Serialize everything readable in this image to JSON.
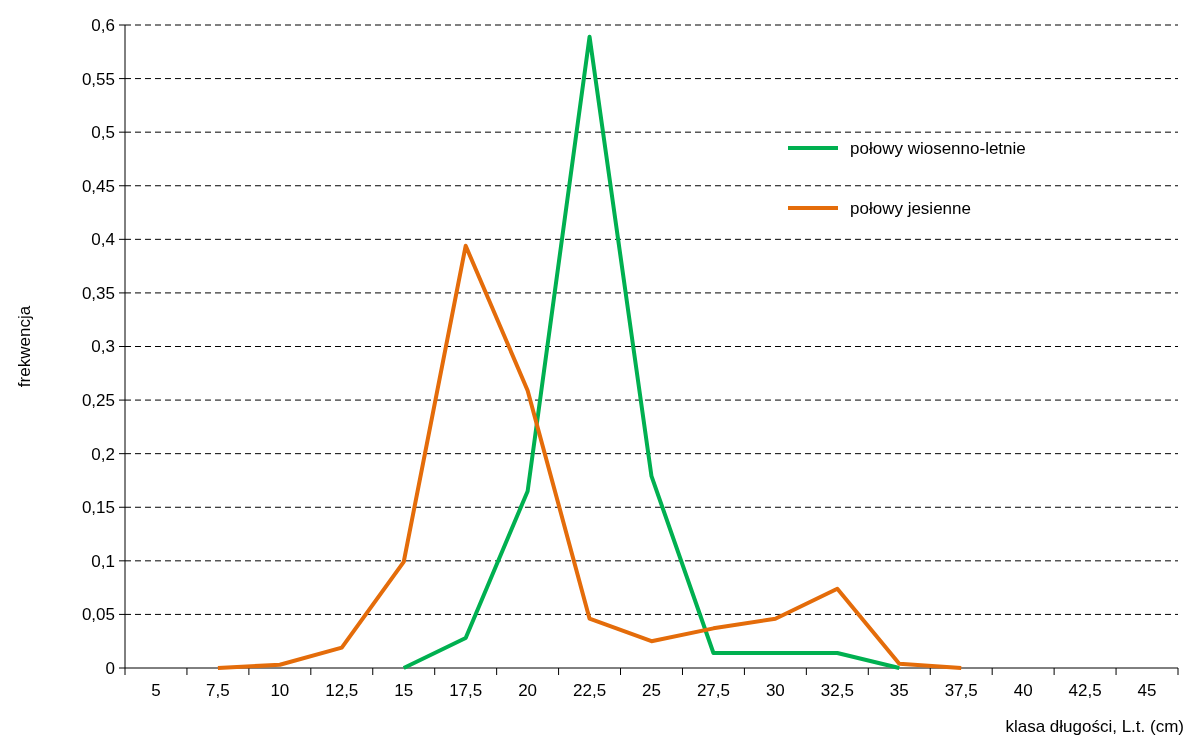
{
  "chart_data": {
    "type": "line",
    "xlabel": "klasa długości, L.t. (cm)",
    "ylabel": "frekwencja",
    "categories": [
      "5",
      "7,5",
      "10",
      "12,5",
      "15",
      "17,5",
      "20",
      "22,5",
      "25",
      "27,5",
      "30",
      "32,5",
      "35",
      "37,5",
      "40",
      "42,5",
      "45"
    ],
    "series": [
      {
        "name": "połowy wiosenno-letnie",
        "color": "#00b050",
        "values": [
          null,
          null,
          null,
          null,
          0,
          0.028,
          0.165,
          0.589,
          0.179,
          0.014,
          0.014,
          0.014,
          0,
          null,
          null,
          null,
          null
        ]
      },
      {
        "name": "połowy jesienne",
        "color": "#e46c0a",
        "values": [
          null,
          0,
          0.003,
          0.019,
          0.099,
          0.394,
          0.259,
          0.046,
          0.025,
          0.037,
          0.046,
          0.074,
          0.004,
          0,
          null,
          null,
          null
        ]
      }
    ],
    "ylim": [
      0,
      0.6
    ],
    "yticks": [
      {
        "value": 0,
        "label": "0"
      },
      {
        "value": 0.05,
        "label": "0,05"
      },
      {
        "value": 0.1,
        "label": "0,1"
      },
      {
        "value": 0.15,
        "label": "0,15"
      },
      {
        "value": 0.2,
        "label": "0,2"
      },
      {
        "value": 0.25,
        "label": "0,25"
      },
      {
        "value": 0.3,
        "label": "0,3"
      },
      {
        "value": 0.35,
        "label": "0,35"
      },
      {
        "value": 0.4,
        "label": "0,4"
      },
      {
        "value": 0.45,
        "label": "0,45"
      },
      {
        "value": 0.5,
        "label": "0,5"
      },
      {
        "value": 0.55,
        "label": "0,55"
      },
      {
        "value": 0.6,
        "label": "0,6"
      }
    ],
    "grid": "y",
    "legend": "top right",
    "marker": "none",
    "line_style": "solid"
  }
}
